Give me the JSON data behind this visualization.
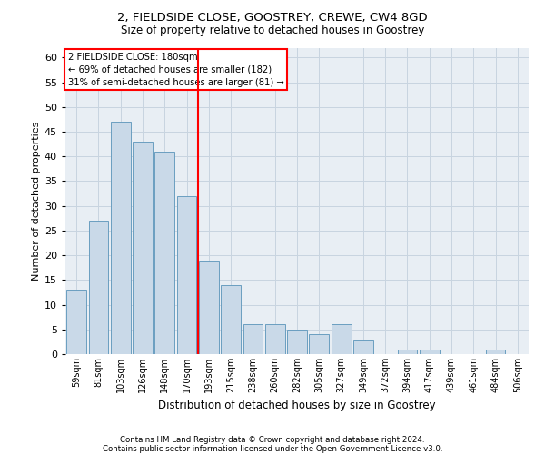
{
  "title1": "2, FIELDSIDE CLOSE, GOOSTREY, CREWE, CW4 8GD",
  "title2": "Size of property relative to detached houses in Goostrey",
  "xlabel": "Distribution of detached houses by size in Goostrey",
  "ylabel": "Number of detached properties",
  "categories": [
    "59sqm",
    "81sqm",
    "103sqm",
    "126sqm",
    "148sqm",
    "170sqm",
    "193sqm",
    "215sqm",
    "238sqm",
    "260sqm",
    "282sqm",
    "305sqm",
    "327sqm",
    "349sqm",
    "372sqm",
    "394sqm",
    "417sqm",
    "439sqm",
    "461sqm",
    "484sqm",
    "506sqm"
  ],
  "values": [
    13,
    27,
    47,
    43,
    41,
    32,
    19,
    14,
    6,
    6,
    5,
    4,
    6,
    3,
    0,
    1,
    1,
    0,
    0,
    1,
    0
  ],
  "bar_color": "#c9d9e8",
  "bar_edge_color": "#6a9ec0",
  "red_line_index": 6,
  "ylim": [
    0,
    62
  ],
  "yticks": [
    0,
    5,
    10,
    15,
    20,
    25,
    30,
    35,
    40,
    45,
    50,
    55,
    60
  ],
  "annotation_line1": "2 FIELDSIDE CLOSE: 180sqm",
  "annotation_line2": "← 69% of detached houses are smaller (182)",
  "annotation_line3": "31% of semi-detached houses are larger (81) →",
  "footer1": "Contains HM Land Registry data © Crown copyright and database right 2024.",
  "footer2": "Contains public sector information licensed under the Open Government Licence v3.0.",
  "background_color": "#e8eef4",
  "plot_background": "#ffffff",
  "grid_color": "#c8d4e0"
}
